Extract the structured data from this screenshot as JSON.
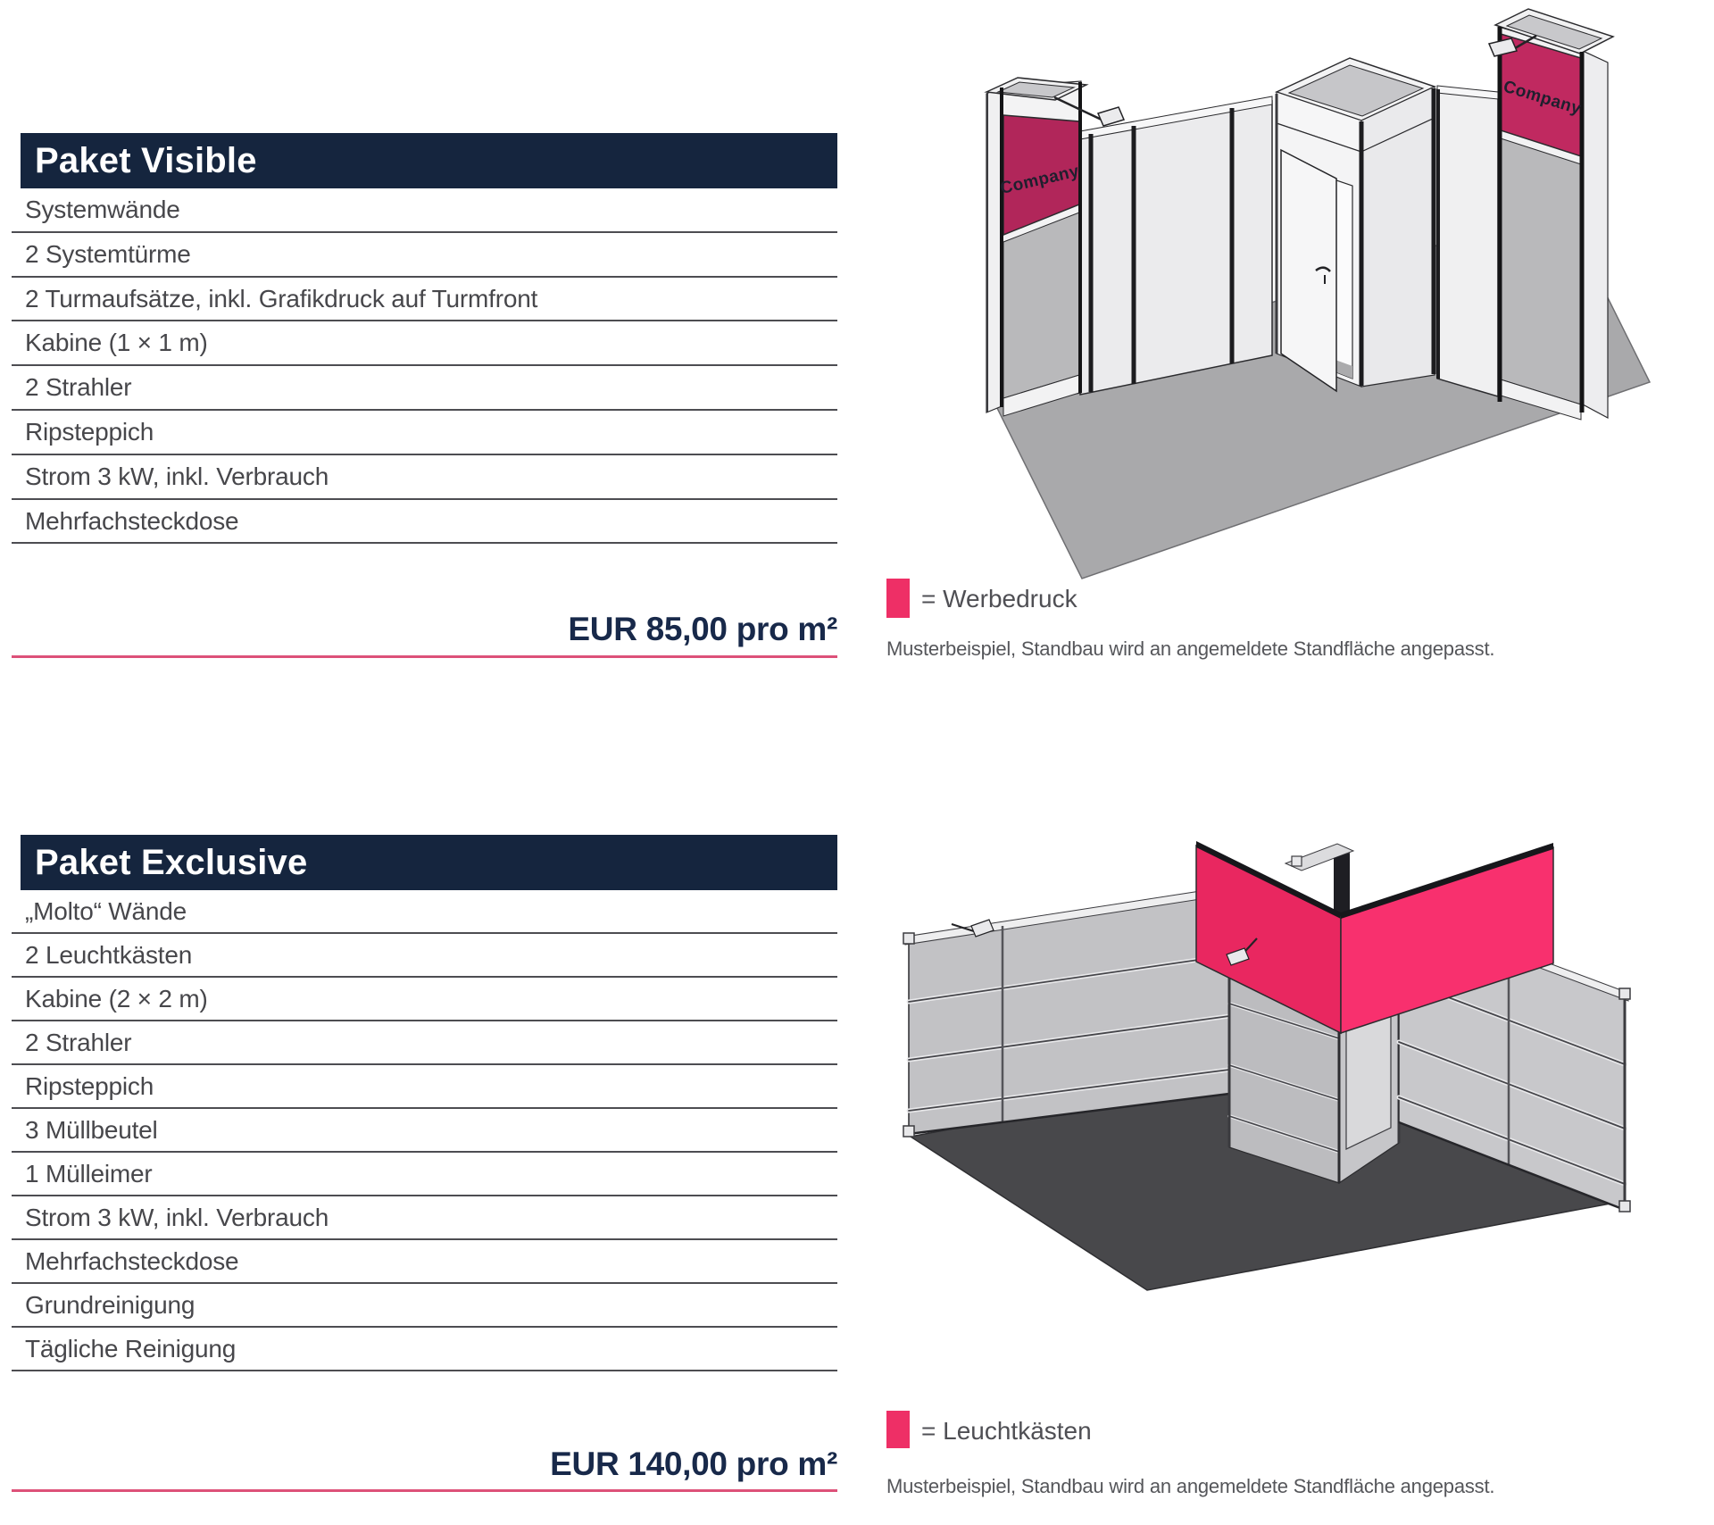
{
  "colors": {
    "header_navy": "#15253E",
    "price_navy": "#18294A",
    "price_rule_pink": "#DD5179",
    "legend_pink": "#EE2F66",
    "banner_pink_left_tower": "#B1265A",
    "banner_pink_right_tower": "#C02960",
    "lightbox_pink_left": "#E92760",
    "lightbox_pink_right": "#F8306E",
    "list_text_gray": "#47474B",
    "rule_gray": "#4D4D52",
    "caption_gray": "#55565A"
  },
  "packages": [
    {
      "title": "Paket Visible",
      "items": [
        "Systemwände",
        "2 Systemtürme",
        "2 Turmaufsätze, inkl. Grafikdruck auf Turmfront",
        "Kabine (1 × 1 m)",
        "2 Strahler",
        "Ripsteppich",
        "Strom 3 kW, inkl. Verbrauch",
        "Mehrfachsteckdose"
      ],
      "price": "EUR 85,00 pro m²",
      "legend_label": "= Werbedruck",
      "caption": "Musterbeispiel, Standbau wird an angemeldete Standfläche angepasst.",
      "booth_brand_label": "Company"
    },
    {
      "title": "Paket Exclusive",
      "items": [
        "„Molto“ Wände",
        "2 Leuchtkästen",
        "Kabine (2 × 2 m)",
        "2 Strahler",
        "Ripsteppich",
        "3 Müllbeutel",
        "1 Mülleimer",
        "Strom 3 kW, inkl. Verbrauch",
        "Mehrfachsteckdose",
        "Grundreinigung",
        "Tägliche Reinigung"
      ],
      "price": "EUR 140,00 pro m²",
      "legend_label": "= Leuchtkästen",
      "caption": "Musterbeispiel, Standbau wird an angemeldete Standfläche angepasst."
    }
  ]
}
